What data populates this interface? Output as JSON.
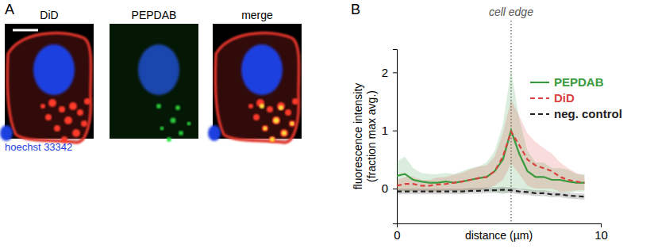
{
  "panels": {
    "a": {
      "label": "A",
      "titles": [
        "DiD",
        "PEPDAB",
        "merge"
      ],
      "stain_label": "hoechst 33342"
    },
    "b": {
      "label": "B"
    }
  },
  "chart_data": {
    "type": "line",
    "xlabel": "distance (µm)",
    "ylabel": [
      "fluorescence intensity",
      "(fraction max avg.)"
    ],
    "x": [
      0,
      0.4,
      0.8,
      1.2,
      1.6,
      2.0,
      2.4,
      2.8,
      3.2,
      3.6,
      4.0,
      4.4,
      4.8,
      5.2,
      5.6,
      6.0,
      6.4,
      6.8,
      7.2,
      7.6,
      8.0,
      8.4,
      8.8,
      9.2
    ],
    "series": [
      {
        "name": "PEPDAB",
        "color": "#3a9a3e",
        "line_style": "solid",
        "values": [
          0.22,
          0.25,
          0.15,
          0.12,
          0.1,
          0.1,
          0.12,
          0.1,
          0.12,
          0.15,
          0.18,
          0.2,
          0.3,
          0.5,
          1.0,
          0.6,
          0.3,
          0.2,
          0.2,
          0.15,
          0.15,
          0.12,
          0.1,
          0.1
        ],
        "error": [
          0.25,
          0.3,
          0.2,
          0.15,
          0.15,
          0.15,
          0.15,
          0.15,
          0.18,
          0.2,
          0.2,
          0.25,
          0.35,
          0.6,
          1.05,
          0.6,
          0.35,
          0.25,
          0.25,
          0.2,
          0.2,
          0.2,
          0.15,
          0.15
        ]
      },
      {
        "name": "DiD",
        "color": "#d9433f",
        "line_style": "dashed",
        "values": [
          0.05,
          0.08,
          0.08,
          0.05,
          0.05,
          0.07,
          0.08,
          0.1,
          0.12,
          0.15,
          0.18,
          0.2,
          0.3,
          0.55,
          0.98,
          0.75,
          0.5,
          0.4,
          0.35,
          0.3,
          0.2,
          0.15,
          0.12,
          0.1
        ],
        "error": [
          0.1,
          0.12,
          0.12,
          0.1,
          0.1,
          0.12,
          0.12,
          0.14,
          0.15,
          0.18,
          0.2,
          0.2,
          0.25,
          0.4,
          0.55,
          0.5,
          0.45,
          0.4,
          0.35,
          0.3,
          0.25,
          0.2,
          0.15,
          0.12
        ]
      },
      {
        "name": "neg. control",
        "color": "#222222",
        "line_style": "dashed",
        "values": [
          -0.05,
          -0.05,
          -0.05,
          -0.05,
          -0.05,
          -0.05,
          -0.05,
          -0.05,
          -0.05,
          -0.04,
          -0.04,
          -0.03,
          -0.03,
          -0.02,
          -0.03,
          -0.05,
          -0.06,
          -0.08,
          -0.08,
          -0.1,
          -0.1,
          -0.12,
          -0.13,
          -0.14
        ],
        "error": [
          0.05,
          0.05,
          0.05,
          0.05,
          0.05,
          0.05,
          0.05,
          0.05,
          0.05,
          0.05,
          0.05,
          0.05,
          0.05,
          0.05,
          0.05,
          0.05,
          0.05,
          0.05,
          0.05,
          0.05,
          0.05,
          0.05,
          0.05,
          0.05
        ]
      }
    ],
    "xlim": [
      0,
      10
    ],
    "xticks": [
      0,
      10
    ],
    "ylim": [
      -0.6,
      2.4
    ],
    "yticks": [
      0,
      1,
      2
    ],
    "annotations": [
      {
        "text": "cell edge",
        "x": 5.6
      }
    ],
    "legend": "upper right",
    "grid": false
  }
}
